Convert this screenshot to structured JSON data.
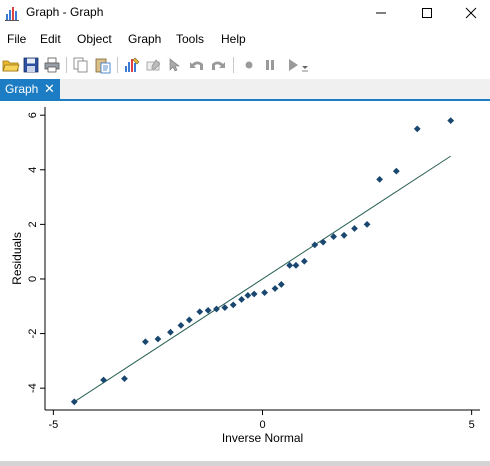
{
  "window": {
    "title": "Graph - Graph",
    "minimize_icon": "minimize-icon",
    "maximize_icon": "maximize-icon",
    "close_icon": "close-icon"
  },
  "menu": {
    "items": [
      "File",
      "Edit",
      "Object",
      "Graph",
      "Tools",
      "Help"
    ]
  },
  "toolbar": {
    "icons": [
      "open-folder-icon",
      "save-icon",
      "print-icon",
      "copy-icon",
      "paste-icon",
      "graph-editor-icon",
      "rename-icon",
      "pointer-icon",
      "undo-icon",
      "redo-icon",
      "record-icon",
      "pause-icon",
      "play-icon",
      "dropdown-icon"
    ]
  },
  "tab": {
    "label": "Graph",
    "close": "✕",
    "accent": "#1c7cc4"
  },
  "chart_data": {
    "type": "scatter",
    "xlabel": "Inverse Normal",
    "ylabel": "Residuals",
    "xlim": [
      -5.2,
      5.2
    ],
    "ylim": [
      -4.8,
      6.3
    ],
    "xticks": [
      -5,
      0,
      5
    ],
    "yticks": [
      -4,
      -2,
      0,
      2,
      4,
      6
    ],
    "grid": false,
    "marker_color": "#1a476f",
    "line_color": "#2a6055",
    "fit_line": {
      "x": [
        -4.5,
        4.5
      ],
      "y": [
        -4.5,
        4.5
      ]
    },
    "series": [
      {
        "x": [
          -4.5,
          -3.8,
          -3.3,
          -2.8,
          -2.5,
          -2.2,
          -1.95,
          -1.75,
          -1.5,
          -1.3,
          -1.1,
          -0.9,
          -0.7,
          -0.5,
          -0.35,
          -0.2,
          0.05,
          0.3,
          0.45,
          0.65,
          0.8,
          1.0,
          1.25,
          1.45,
          1.7,
          1.95,
          2.2,
          2.5,
          2.8,
          3.2,
          3.7,
          4.5
        ],
        "y": [
          -4.5,
          -3.7,
          -3.65,
          -2.3,
          -2.2,
          -1.95,
          -1.7,
          -1.5,
          -1.2,
          -1.15,
          -1.1,
          -1.05,
          -0.95,
          -0.75,
          -0.6,
          -0.55,
          -0.5,
          -0.35,
          -0.2,
          0.5,
          0.5,
          0.65,
          1.25,
          1.35,
          1.55,
          1.6,
          1.85,
          2.0,
          3.65,
          3.95,
          5.5,
          5.8
        ]
      }
    ]
  }
}
